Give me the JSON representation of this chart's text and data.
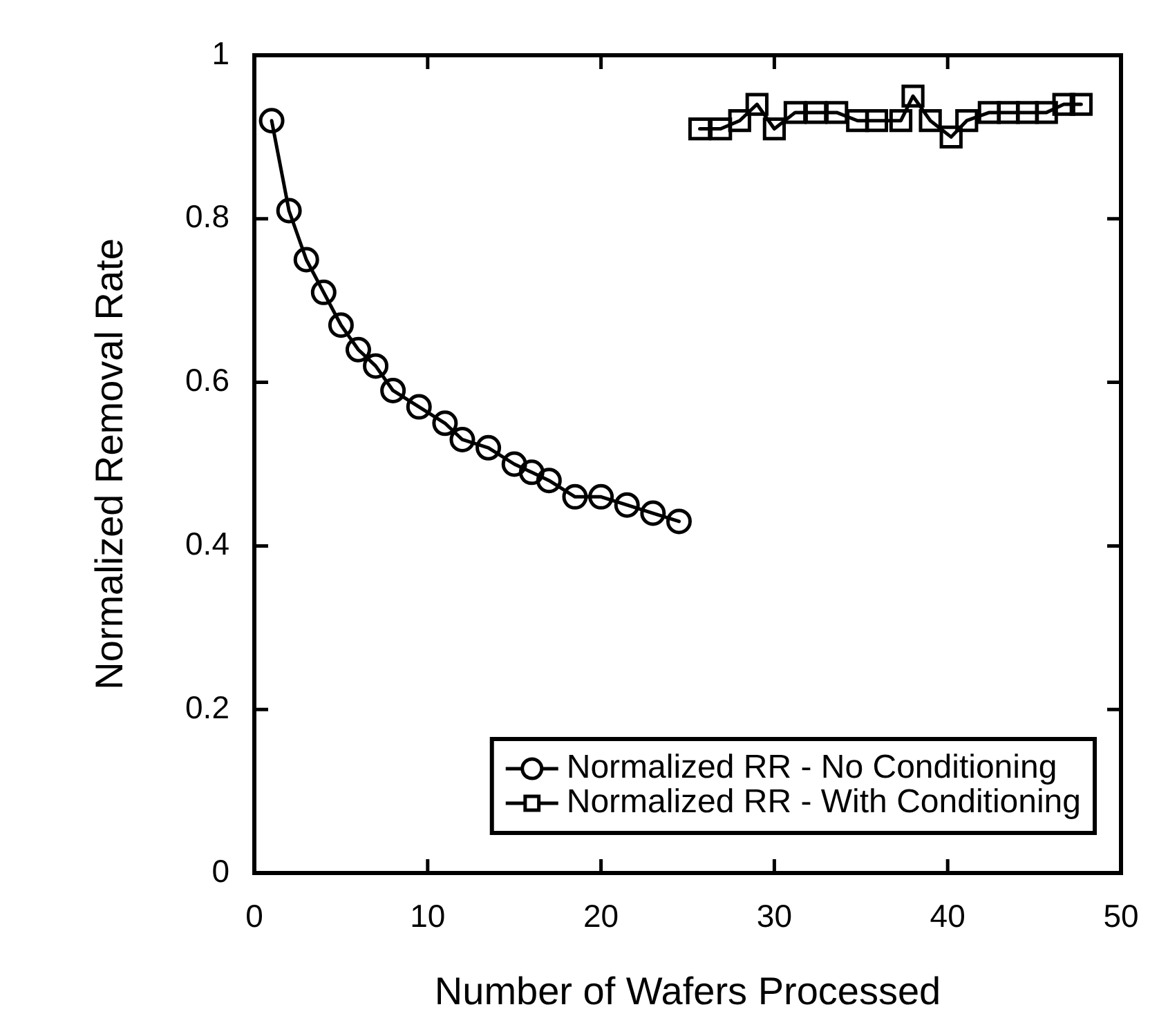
{
  "chart_data": {
    "type": "line",
    "xlabel": "Number of Wafers Processed",
    "ylabel": "Normalized Removal Rate",
    "xlim": [
      0,
      50
    ],
    "ylim": [
      0,
      1
    ],
    "xticks": [
      0,
      10,
      20,
      30,
      40,
      50
    ],
    "yticks": [
      0,
      0.2,
      0.4,
      0.6,
      0.8,
      1
    ],
    "grid": false,
    "legend": "bottom right",
    "line_style": "solid",
    "series": [
      {
        "name": "Normalized RR - No Conditioning",
        "color": "#000000",
        "marker": "circle",
        "x": [
          1,
          2,
          3,
          4,
          5,
          6,
          7,
          8,
          9.5,
          11,
          12,
          13.5,
          15,
          16,
          17,
          18.5,
          20,
          21.5,
          23,
          24.5
        ],
        "values": [
          0.92,
          0.81,
          0.75,
          0.71,
          0.67,
          0.64,
          0.62,
          0.59,
          0.57,
          0.55,
          0.53,
          0.52,
          0.5,
          0.49,
          0.48,
          0.46,
          0.46,
          0.45,
          0.44,
          0.43
        ]
      },
      {
        "name": "Normalized RR - With Conditioning",
        "color": "#000000",
        "marker": "square",
        "x": [
          25.7,
          26.9,
          28,
          29,
          30,
          31.2,
          32.4,
          33.6,
          34.8,
          35.9,
          37.3,
          38,
          39,
          40.2,
          41.1,
          42.4,
          43.5,
          44.6,
          45.7,
          46.7,
          47.7
        ],
        "values": [
          0.91,
          0.91,
          0.92,
          0.94,
          0.91,
          0.93,
          0.93,
          0.93,
          0.92,
          0.92,
          0.92,
          0.95,
          0.92,
          0.9,
          0.92,
          0.93,
          0.93,
          0.93,
          0.93,
          0.94,
          0.94
        ]
      }
    ]
  }
}
